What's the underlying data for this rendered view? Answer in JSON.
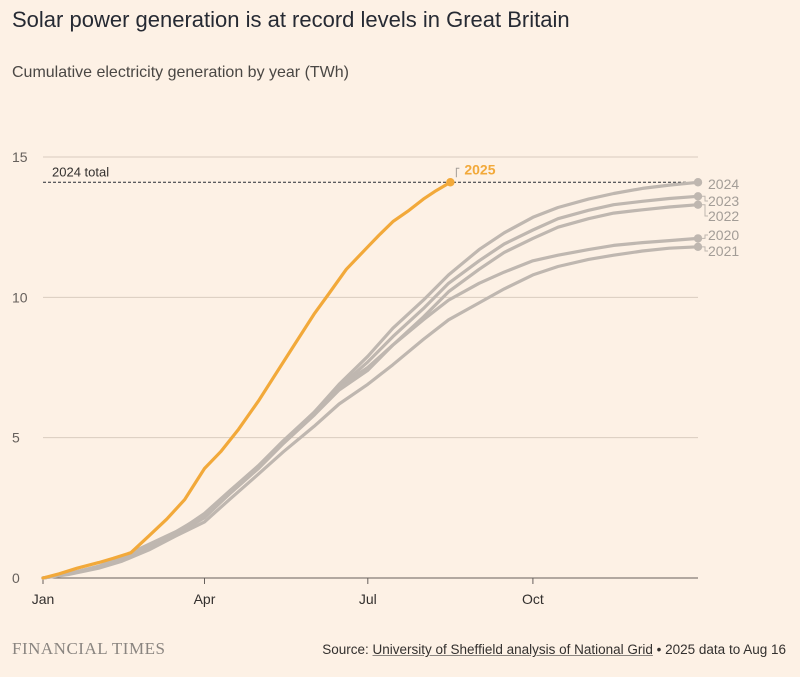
{
  "chart_data": {
    "type": "line",
    "title": "Solar power generation is at record levels in Great Britain",
    "subtitle": "Cumulative electricity generation by year (TWh)",
    "x_unit": "day of year",
    "xlim": [
      1,
      366
    ],
    "ylim": [
      0,
      15
    ],
    "y_ticks": [
      0,
      5,
      10,
      15
    ],
    "x_ticks": [
      {
        "label": "Jan",
        "day": 1
      },
      {
        "label": "Apr",
        "day": 91
      },
      {
        "label": "Jul",
        "day": 182
      },
      {
        "label": "Oct",
        "day": 274
      }
    ],
    "grid": "horizontal",
    "reference_line": {
      "label": "2024 total",
      "value": 14.1
    },
    "series": [
      {
        "name": "2020",
        "color": "#bfb7b0",
        "x": [
          1,
          15,
          32,
          45,
          60,
          75,
          91,
          105,
          121,
          135,
          152,
          166,
          182,
          196,
          213,
          227,
          244,
          258,
          274,
          288,
          305,
          319,
          335,
          350,
          366
        ],
        "y": [
          0,
          0.15,
          0.4,
          0.7,
          1.15,
          1.6,
          2.3,
          3.1,
          4.0,
          4.9,
          5.9,
          6.8,
          7.5,
          8.3,
          9.2,
          9.9,
          10.5,
          10.9,
          11.3,
          11.5,
          11.7,
          11.85,
          11.95,
          12.02,
          12.1
        ]
      },
      {
        "name": "2021",
        "color": "#bfb7b0",
        "x": [
          1,
          15,
          32,
          45,
          60,
          75,
          91,
          105,
          121,
          135,
          152,
          166,
          182,
          196,
          213,
          227,
          244,
          258,
          274,
          288,
          305,
          319,
          335,
          350,
          366
        ],
        "y": [
          0,
          0.12,
          0.35,
          0.6,
          1.0,
          1.5,
          2.0,
          2.8,
          3.7,
          4.5,
          5.4,
          6.2,
          6.9,
          7.6,
          8.5,
          9.2,
          9.8,
          10.3,
          10.8,
          11.1,
          11.35,
          11.5,
          11.65,
          11.75,
          11.8
        ]
      },
      {
        "name": "2022",
        "color": "#bfb7b0",
        "x": [
          1,
          15,
          32,
          45,
          60,
          75,
          91,
          105,
          121,
          135,
          152,
          166,
          182,
          196,
          213,
          227,
          244,
          258,
          274,
          288,
          305,
          319,
          335,
          350,
          366
        ],
        "y": [
          0,
          0.14,
          0.38,
          0.68,
          1.1,
          1.55,
          2.15,
          3.0,
          3.9,
          4.8,
          5.8,
          6.7,
          7.4,
          8.3,
          9.3,
          10.2,
          11.0,
          11.6,
          12.1,
          12.5,
          12.8,
          13.0,
          13.12,
          13.22,
          13.3
        ]
      },
      {
        "name": "2023",
        "color": "#bfb7b0",
        "x": [
          1,
          15,
          32,
          45,
          60,
          75,
          91,
          105,
          121,
          135,
          152,
          166,
          182,
          196,
          213,
          227,
          244,
          258,
          274,
          288,
          305,
          319,
          335,
          350,
          366
        ],
        "y": [
          0,
          0.14,
          0.4,
          0.7,
          1.12,
          1.6,
          2.2,
          3.0,
          3.9,
          4.8,
          5.8,
          6.8,
          7.7,
          8.6,
          9.6,
          10.5,
          11.3,
          11.9,
          12.4,
          12.8,
          13.1,
          13.3,
          13.42,
          13.52,
          13.6
        ]
      },
      {
        "name": "2024",
        "color": "#bfb7b0",
        "x": [
          1,
          15,
          32,
          45,
          60,
          75,
          91,
          105,
          121,
          135,
          152,
          166,
          182,
          196,
          213,
          227,
          244,
          258,
          274,
          288,
          305,
          319,
          335,
          350,
          366
        ],
        "y": [
          0,
          0.15,
          0.42,
          0.75,
          1.2,
          1.65,
          2.25,
          3.1,
          3.95,
          4.85,
          5.9,
          6.9,
          7.9,
          8.9,
          9.9,
          10.8,
          11.7,
          12.3,
          12.85,
          13.2,
          13.5,
          13.7,
          13.88,
          14.0,
          14.1
        ]
      },
      {
        "name": "2025",
        "color": "#f2a93a",
        "x": [
          1,
          10,
          20,
          32,
          40,
          50,
          60,
          70,
          80,
          91,
          100,
          110,
          121,
          130,
          140,
          152,
          160,
          170,
          182,
          188,
          196,
          205,
          213,
          220,
          228
        ],
        "y": [
          0,
          0.15,
          0.35,
          0.55,
          0.7,
          0.9,
          1.5,
          2.1,
          2.8,
          3.9,
          4.5,
          5.3,
          6.3,
          7.2,
          8.2,
          9.4,
          10.1,
          11.0,
          11.8,
          12.2,
          12.7,
          13.1,
          13.5,
          13.8,
          14.1
        ]
      }
    ]
  },
  "footer": {
    "logo": "FINANCIAL TIMES",
    "source_prefix": "Source: ",
    "source_link": "University of Sheffield analysis of National Grid",
    "source_suffix": " • 2025 data to Aug 16"
  }
}
